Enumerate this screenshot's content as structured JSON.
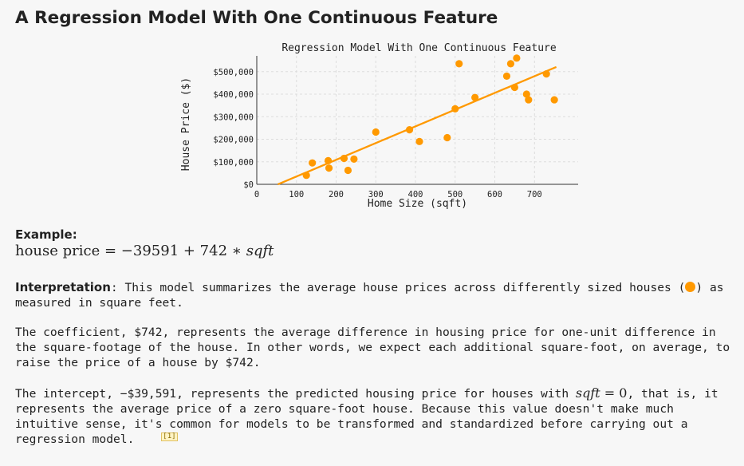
{
  "page": {
    "title": "A Regression Model With One Continuous Feature"
  },
  "chart_data": {
    "type": "scatter",
    "title": "Regression Model With One Continuous Feature",
    "xlabel": "Home Size (sqft)",
    "ylabel": "House Price ($)",
    "xlim": [
      0,
      810
    ],
    "ylim": [
      0,
      570000
    ],
    "x_ticks": [
      0,
      100,
      200,
      300,
      400,
      500,
      600,
      700
    ],
    "y_ticks": [
      0,
      100000,
      200000,
      300000,
      400000,
      500000
    ],
    "y_tick_labels": [
      "$0",
      "$100,000",
      "$200,000",
      "$300,000",
      "$400,000",
      "$500,000"
    ],
    "grid": true,
    "point_color": "#ff9900",
    "line_color": "#ff9900",
    "points": [
      {
        "x": 125,
        "y": 40000
      },
      {
        "x": 140,
        "y": 95000
      },
      {
        "x": 180,
        "y": 105000
      },
      {
        "x": 182,
        "y": 72000
      },
      {
        "x": 220,
        "y": 115000
      },
      {
        "x": 230,
        "y": 62000
      },
      {
        "x": 245,
        "y": 112000
      },
      {
        "x": 300,
        "y": 232000
      },
      {
        "x": 385,
        "y": 242000
      },
      {
        "x": 410,
        "y": 190000
      },
      {
        "x": 480,
        "y": 207000
      },
      {
        "x": 500,
        "y": 335000
      },
      {
        "x": 510,
        "y": 535000
      },
      {
        "x": 550,
        "y": 385000
      },
      {
        "x": 630,
        "y": 480000
      },
      {
        "x": 640,
        "y": 535000
      },
      {
        "x": 650,
        "y": 430000
      },
      {
        "x": 655,
        "y": 560000
      },
      {
        "x": 680,
        "y": 400000
      },
      {
        "x": 685,
        "y": 375000
      },
      {
        "x": 730,
        "y": 490000
      },
      {
        "x": 750,
        "y": 375000
      }
    ],
    "regression_line": {
      "intercept": -39591,
      "slope": 742,
      "x_range": [
        53,
        755
      ]
    }
  },
  "example": {
    "heading": "Example:",
    "lhs": "house price",
    "eq": " = ",
    "intercept": "−39591",
    "plus": " + ",
    "slope": "742",
    "times": " ∗ ",
    "var": "sqft"
  },
  "paragraphs": {
    "p1_label": "Interpretation",
    "p1_text_a": ": This model summarizes the average house prices across differently sized houses (",
    "p1_text_b": ") as measured in square feet.",
    "p2_text": "The coefficient, $742, represents the average difference in housing price for one-unit difference in the square-footage of the house. In other words, we expect each additional square-foot, on average, to raise the price of a house by $742.",
    "p3_text_a": "The intercept, −$39,591, represents the predicted housing price for houses with ",
    "p3_var": "sqft",
    "p3_eq": " = ",
    "p3_zero": "0",
    "p3_text_b": ", that is, it represents the average price of a zero square-foot house. Because this value doesn't make much intuitive sense, it's ",
    "p3_footnote": "[1]",
    "p3_text_c": "common for models to be transformed and standardized before carrying out a regression model."
  }
}
